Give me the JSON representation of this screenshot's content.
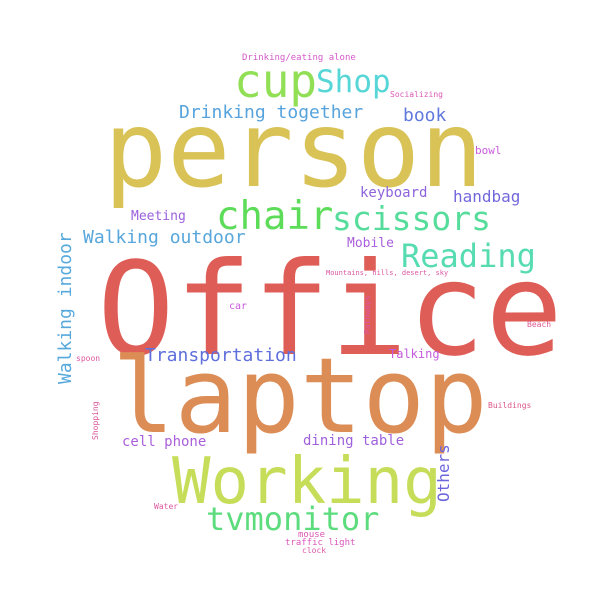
{
  "words": [
    {
      "text": "Office",
      "color": "#df5d57"
    },
    {
      "text": "person",
      "color": "#d9c256"
    },
    {
      "text": "laptop",
      "color": "#dc8c55"
    },
    {
      "text": "Working",
      "color": "#c6dd59"
    },
    {
      "text": "cup",
      "color": "#91df55"
    },
    {
      "text": "chair",
      "color": "#5ddc59"
    },
    {
      "text": "scissors",
      "color": "#57dd9b"
    },
    {
      "text": "Shop",
      "color": "#57d6d7"
    },
    {
      "text": "Reading",
      "color": "#57dcb2"
    },
    {
      "text": "tvmonitor",
      "color": "#5ddc7e"
    },
    {
      "text": "Drinking together",
      "color": "#57a3dc"
    },
    {
      "text": "book",
      "color": "#5f79dc"
    },
    {
      "text": "Walking outdoor",
      "color": "#57a6dc"
    },
    {
      "text": "Walking indoor",
      "color": "#57a9dc"
    },
    {
      "text": "Transportation",
      "color": "#5f6fdc"
    },
    {
      "text": "handbag",
      "color": "#7267dc"
    },
    {
      "text": "keyboard",
      "color": "#8e63dc"
    },
    {
      "text": "Meeting",
      "color": "#9a61dc"
    },
    {
      "text": "Mobile",
      "color": "#aa5fdc"
    },
    {
      "text": "cell phone",
      "color": "#a95fdb"
    },
    {
      "text": "dining table",
      "color": "#9f61dc"
    },
    {
      "text": "Others",
      "color": "#6c64dc"
    },
    {
      "text": "Talking",
      "color": "#c55adc"
    },
    {
      "text": "bowl",
      "color": "#c95adc"
    },
    {
      "text": "Drinking/eating alone",
      "color": "#d458c9"
    },
    {
      "text": "Socializing",
      "color": "#dc57b4"
    },
    {
      "text": "Mountains, hills, desert, sky",
      "color": "#dc57a4"
    },
    {
      "text": "car",
      "color": "#c95adc"
    },
    {
      "text": "Pathways",
      "color": "#dc57a8"
    },
    {
      "text": "Beach",
      "color": "#dc5790"
    },
    {
      "text": "spoon",
      "color": "#dc57a1"
    },
    {
      "text": "Shopping",
      "color": "#dc579c"
    },
    {
      "text": "Buildings",
      "color": "#dc5789"
    },
    {
      "text": "Water",
      "color": "#dc57a0"
    },
    {
      "text": "mouse",
      "color": "#dc57b2"
    },
    {
      "text": "traffic light",
      "color": "#dc57bd"
    },
    {
      "text": "clock",
      "color": "#dc57a7"
    }
  ]
}
